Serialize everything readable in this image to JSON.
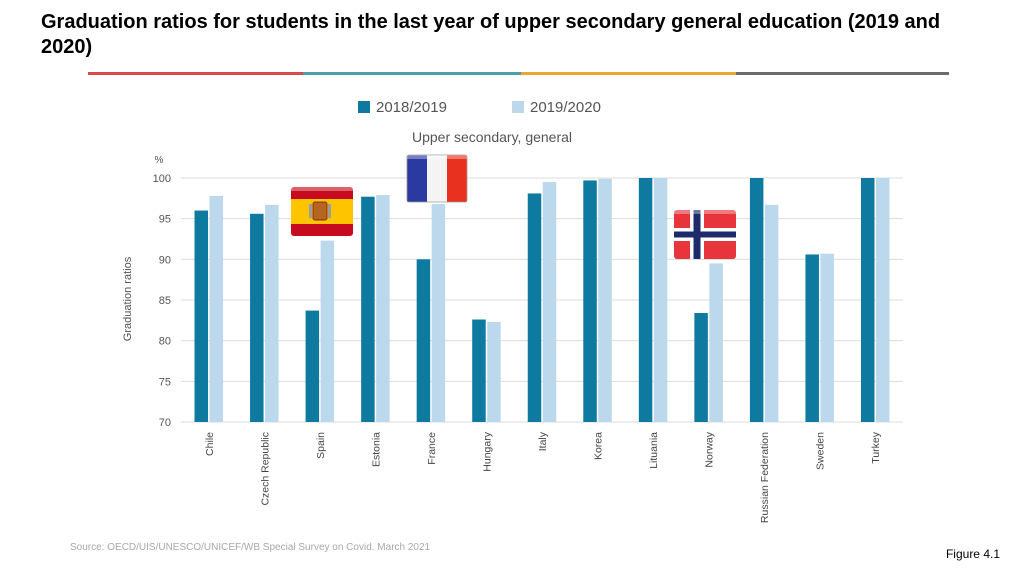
{
  "slide": {
    "title": "Graduation ratios for students in the last year of upper secondary general education (2019 and 2020)",
    "source": "Source: OECD/UIS/UNESCO/UNICEF/WB Special Survey on Covid. March 2021",
    "figure_label": "Figure 4.1",
    "rule_colors": [
      "#d9474f",
      "#4aa0a8",
      "#e8a838",
      "#6b6b6b"
    ]
  },
  "chart_data": {
    "type": "bar",
    "title": "Upper secondary, general",
    "ylabel": "Graduation ratios",
    "yunit": "%",
    "ylim": [
      70,
      100
    ],
    "yticks": [
      70,
      75,
      80,
      85,
      90,
      95,
      100
    ],
    "grid": true,
    "legend_position": "top-center",
    "categories": [
      "Chile",
      "Czech Republic",
      "Spain",
      "Estonia",
      "France",
      "Hungary",
      "Italy",
      "Korea",
      "Lituania",
      "Norway",
      "Russian Federation",
      "Sweden",
      "Turkey"
    ],
    "series": [
      {
        "name": "2018/2019",
        "color": "#0e7aa0",
        "values": [
          96.0,
          95.6,
          83.7,
          97.7,
          90.0,
          82.6,
          98.1,
          99.7,
          100,
          83.4,
          100,
          90.6,
          100
        ]
      },
      {
        "name": "2019/2020",
        "color": "#bcd8ec",
        "values": [
          97.8,
          96.7,
          92.3,
          97.9,
          96.8,
          82.3,
          99.5,
          99.9,
          100,
          89.5,
          96.7,
          90.7,
          100
        ]
      }
    ],
    "flags": [
      {
        "country": "Spain",
        "icon": "spain-flag-icon"
      },
      {
        "country": "France",
        "icon": "france-flag-icon"
      },
      {
        "country": "Norway",
        "icon": "norway-flag-icon"
      }
    ]
  }
}
